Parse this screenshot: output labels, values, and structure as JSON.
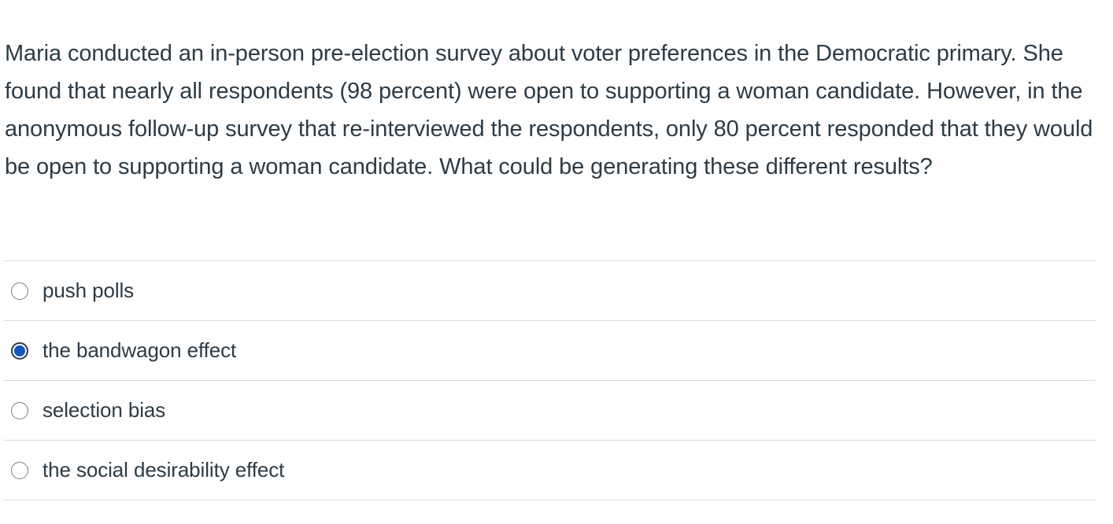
{
  "question": {
    "text": "Maria conducted an in-person pre-election survey about voter preferences in the Democratic primary. She found that nearly all respondents (98 percent) were open to supporting a woman candidate. However, in the anonymous follow-up survey that re-interviewed the respondents, only 80 percent responded that they would be open to supporting a woman candidate. What could be generating these different results?"
  },
  "answers": [
    {
      "label": "push polls",
      "selected": false
    },
    {
      "label": "the bandwagon effect",
      "selected": true
    },
    {
      "label": "selection bias",
      "selected": false
    },
    {
      "label": "the social desirability effect",
      "selected": false
    }
  ],
  "colors": {
    "text": "#2d3b45",
    "divider": "#d8dcdf",
    "radio_selected": "#0b55c8"
  }
}
